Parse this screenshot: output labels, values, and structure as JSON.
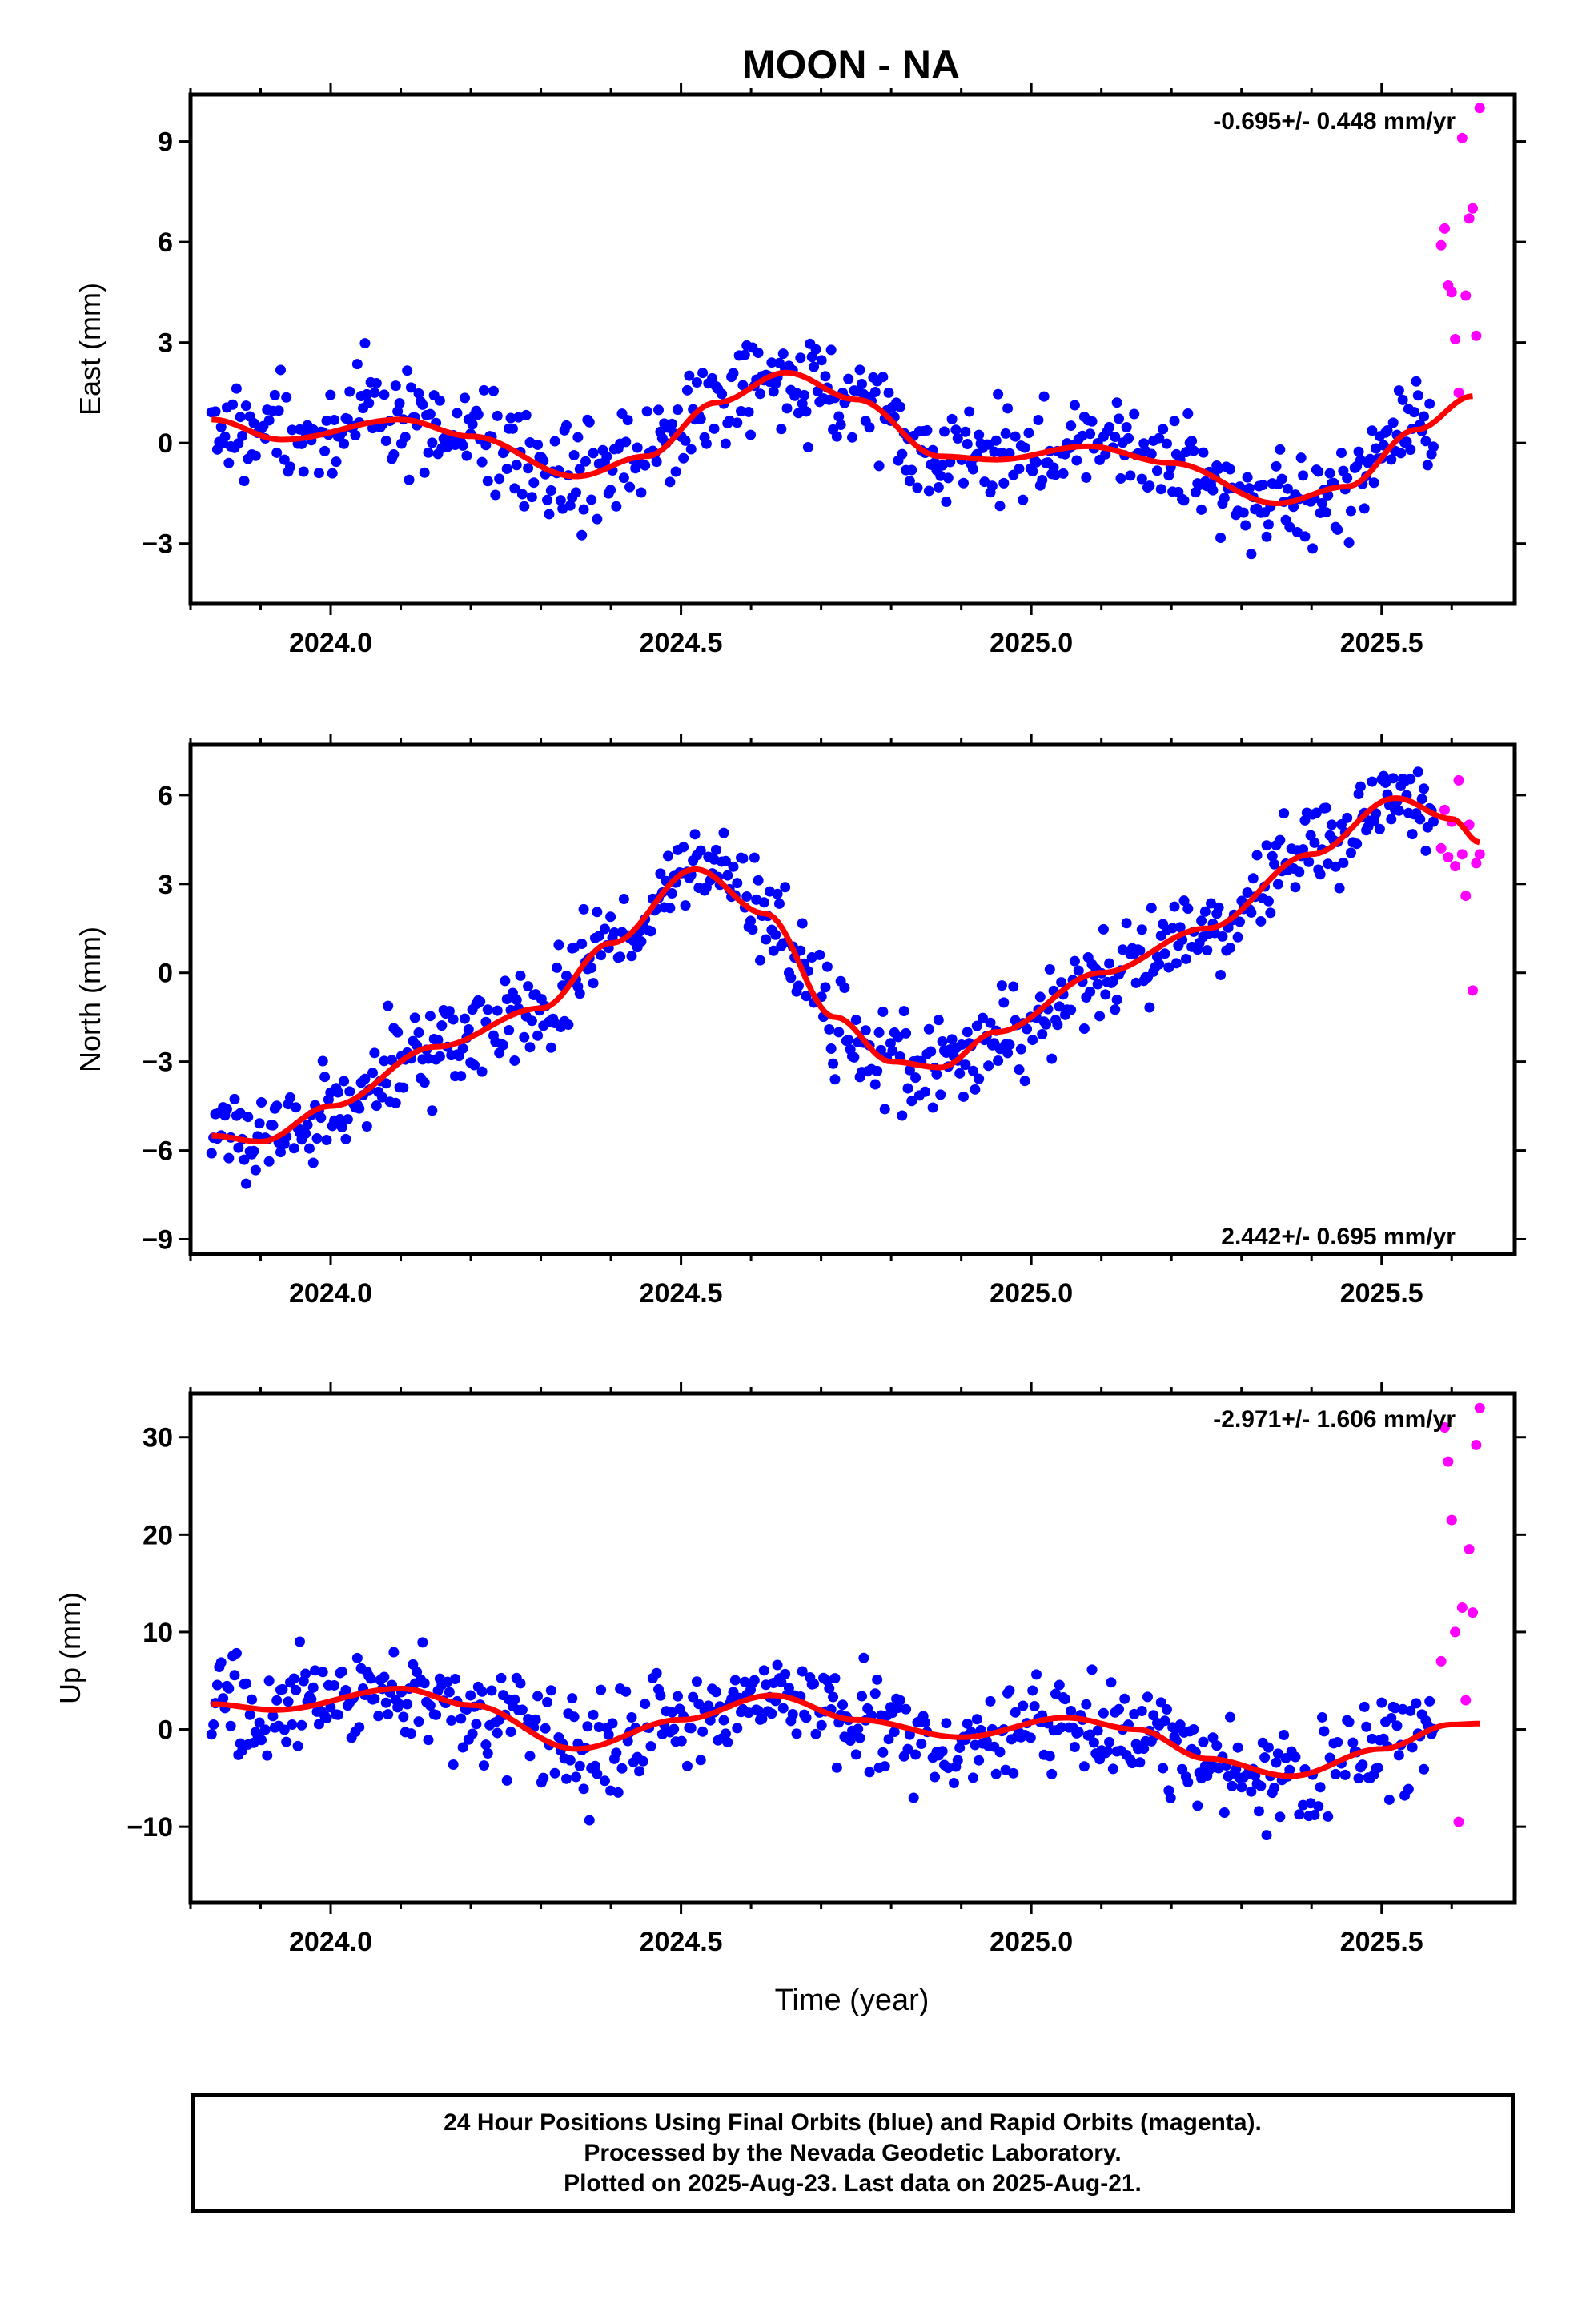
{
  "title": "MOON - NA",
  "colors": {
    "final": "#0000ff",
    "rapid": "#ff00ff",
    "model": "#ff0000",
    "frame": "#000000"
  },
  "xlabel": "Time (year)",
  "footer": [
    "24 Hour Positions Using Final Orbits (blue) and Rapid Orbits (magenta).",
    "Processed by the Nevada Geodetic Laboratory.",
    "Plotted on 2025-Aug-23. Last data on 2025-Aug-21."
  ],
  "chart_data": [
    {
      "type": "scatter",
      "ylabel": "East (mm)",
      "rate_text": "-0.695+/- 0.448 mm/yr",
      "rate_position": "top-right",
      "xlim": [
        2023.8,
        2025.69
      ],
      "ylim": [
        -4.8,
        10.4
      ],
      "xticks": [
        2024.0,
        2024.5,
        2025.0,
        2025.5
      ],
      "xtick_labels": [
        "2024.0",
        "2024.5",
        "2025.0",
        "2025.5"
      ],
      "yticks": [
        -3,
        0,
        3,
        6,
        9
      ],
      "ytick_labels": [
        "−3",
        "0",
        "3",
        "6",
        "9"
      ],
      "model_curve": {
        "x": [
          2023.83,
          2023.93,
          2024.1,
          2024.2,
          2024.35,
          2024.45,
          2024.55,
          2024.65,
          2024.75,
          2024.87,
          2024.95,
          2025.08,
          2025.2,
          2025.35,
          2025.45,
          2025.55,
          2025.63
        ],
        "y": [
          0.7,
          0.1,
          0.7,
          0.2,
          -1.0,
          -0.4,
          1.2,
          2.1,
          1.3,
          -0.4,
          -0.5,
          -0.1,
          -0.6,
          -1.8,
          -1.3,
          0.4,
          1.4
        ]
      },
      "final_points_noise_mm": 1.0,
      "rapid_points": {
        "x": [
          2025.585,
          2025.59,
          2025.595,
          2025.6,
          2025.605,
          2025.61,
          2025.615,
          2025.62,
          2025.625,
          2025.63,
          2025.635,
          2025.64
        ],
        "y": [
          5.9,
          6.4,
          4.7,
          4.5,
          3.1,
          1.5,
          9.1,
          4.4,
          6.7,
          7.0,
          3.2,
          10.0
        ]
      }
    },
    {
      "type": "scatter",
      "ylabel": "North (mm)",
      "rate_text": "2.442+/- 0.695 mm/yr",
      "rate_position": "bottom-right",
      "xlim": [
        2023.8,
        2025.69
      ],
      "ylim": [
        -9.5,
        7.7
      ],
      "xticks": [
        2024.0,
        2024.5,
        2025.0,
        2025.5
      ],
      "xtick_labels": [
        "2024.0",
        "2024.5",
        "2025.0",
        "2025.5"
      ],
      "yticks": [
        -9,
        -6,
        -3,
        0,
        3,
        6
      ],
      "ytick_labels": [
        "−9",
        "−6",
        "−3",
        "0",
        "3",
        "6"
      ],
      "model_curve": {
        "x": [
          2023.83,
          2023.9,
          2024.0,
          2024.15,
          2024.3,
          2024.4,
          2024.52,
          2024.62,
          2024.72,
          2024.8,
          2024.87,
          2024.95,
          2025.1,
          2025.25,
          2025.4,
          2025.52,
          2025.6,
          2025.64
        ],
        "y": [
          -5.5,
          -5.7,
          -4.5,
          -2.5,
          -1.2,
          1.0,
          3.5,
          2.0,
          -1.5,
          -3.0,
          -3.2,
          -2.0,
          0.0,
          1.5,
          4.0,
          5.9,
          5.2,
          4.4
        ]
      },
      "final_points_noise_mm": 1.0,
      "rapid_points": {
        "x": [
          2025.585,
          2025.59,
          2025.595,
          2025.6,
          2025.605,
          2025.61,
          2025.615,
          2025.62,
          2025.625,
          2025.63,
          2025.635,
          2025.64
        ],
        "y": [
          4.2,
          5.5,
          3.9,
          5.1,
          3.6,
          6.5,
          4.0,
          2.6,
          5.0,
          -0.6,
          3.7,
          4.0
        ]
      }
    },
    {
      "type": "scatter",
      "ylabel": "Up (mm)",
      "rate_text": "-2.971+/- 1.606 mm/yr",
      "rate_position": "top-right",
      "xlim": [
        2023.8,
        2025.69
      ],
      "ylim": [
        -17.8,
        34.5
      ],
      "xticks": [
        2024.0,
        2024.5,
        2025.0,
        2025.5
      ],
      "xtick_labels": [
        "2024.0",
        "2024.5",
        "2025.0",
        "2025.5"
      ],
      "yticks": [
        -10,
        0,
        10,
        20,
        30
      ],
      "ytick_labels": [
        "−10",
        "0",
        "10",
        "20",
        "30"
      ],
      "model_curve": {
        "x": [
          2023.83,
          2023.92,
          2024.1,
          2024.2,
          2024.35,
          2024.5,
          2024.63,
          2024.75,
          2024.9,
          2025.05,
          2025.15,
          2025.25,
          2025.37,
          2025.5,
          2025.6,
          2025.64
        ],
        "y": [
          2.6,
          2.0,
          4.2,
          2.5,
          -2.0,
          1.0,
          3.5,
          1.0,
          -0.8,
          1.2,
          0.0,
          -3.0,
          -4.8,
          -2.0,
          0.5,
          0.6
        ]
      },
      "final_points_noise_mm": 3.5,
      "rapid_points": {
        "x": [
          2025.585,
          2025.59,
          2025.595,
          2025.6,
          2025.605,
          2025.61,
          2025.615,
          2025.62,
          2025.625,
          2025.63,
          2025.635,
          2025.64
        ],
        "y": [
          7.0,
          31.0,
          27.5,
          21.5,
          10.0,
          -9.5,
          12.5,
          3.0,
          18.5,
          12.0,
          29.2,
          33.0
        ]
      }
    }
  ]
}
